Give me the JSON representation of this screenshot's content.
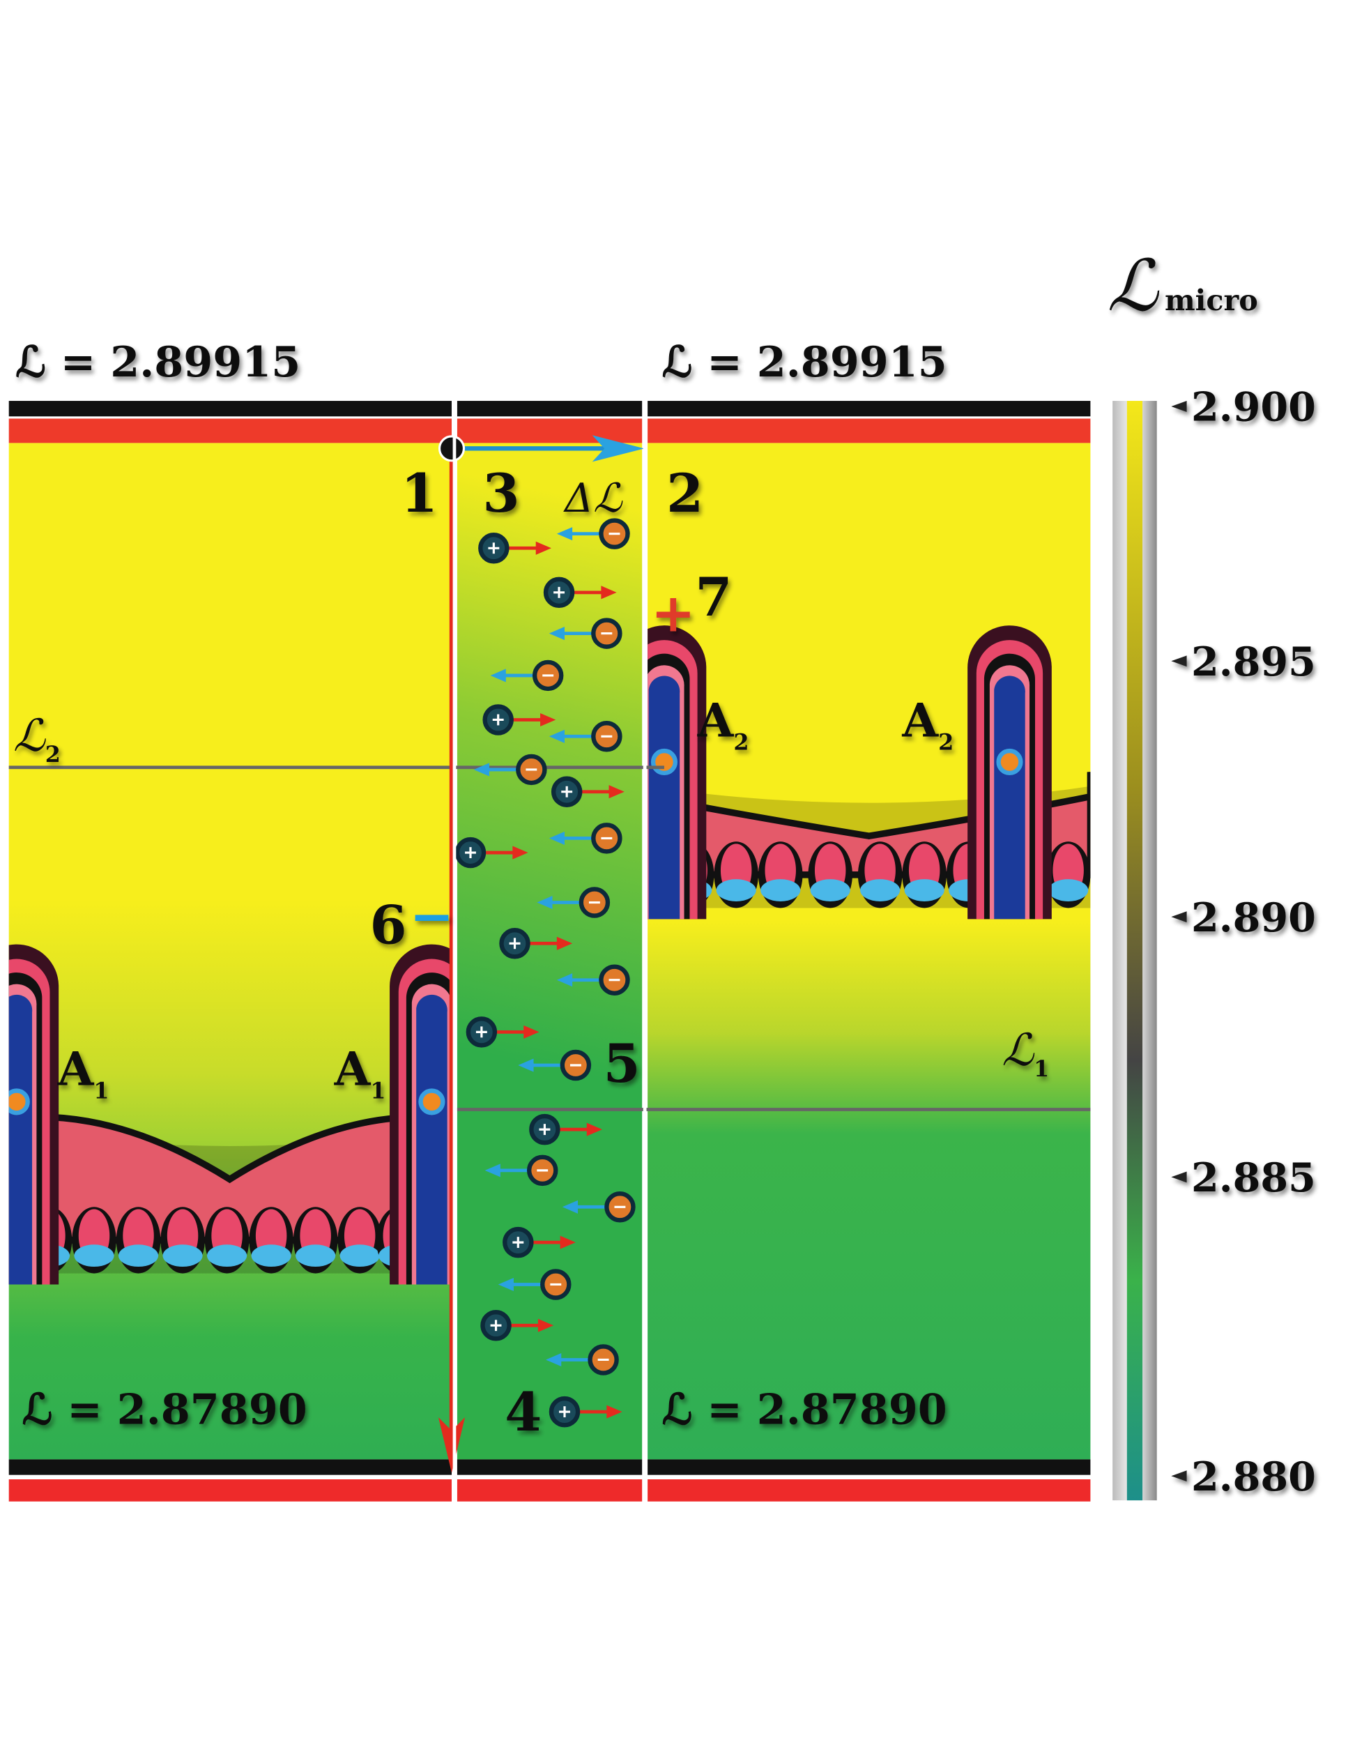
{
  "levels": {
    "top_left": "ℒ = 2.89915",
    "top_right": "ℒ = 2.89915",
    "bottom_left": "ℒ = 2.87890",
    "bottom_right": "ℒ = 2.87890"
  },
  "points": {
    "p1": "1",
    "p2": "2",
    "p3": "3",
    "p4": "4",
    "p5": "5",
    "p6": "6",
    "p7": "7",
    "sign6": "−",
    "sign7": "+"
  },
  "delta": "Δℒ",
  "lines": [
    {
      "symbol": "ℒ",
      "sub": "2"
    },
    {
      "symbol": "ℒ",
      "sub": "1"
    }
  ],
  "regions": [
    {
      "symbol": "A",
      "sub": "1"
    },
    {
      "symbol": "A",
      "sub": "1"
    },
    {
      "symbol": "A",
      "sub": "2"
    },
    {
      "symbol": "A",
      "sub": "2"
    }
  ],
  "colorbar": {
    "title": "ℒ",
    "title_sub": "micro",
    "ticks": [
      "2.900",
      "2.895",
      "2.890",
      "2.885",
      "2.880"
    ]
  }
}
